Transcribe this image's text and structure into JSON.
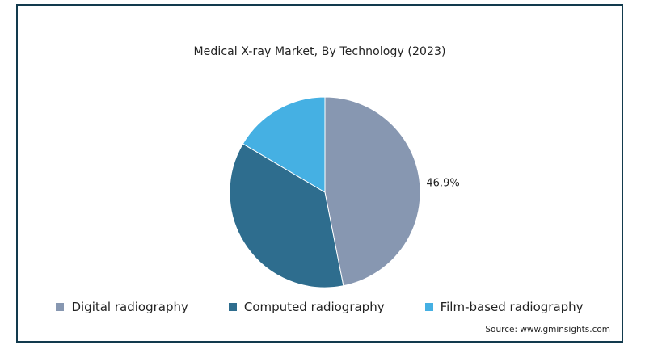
{
  "chart_data": {
    "type": "pie",
    "title": "Medical X-ray Market, By Technology (2023)",
    "slices": [
      {
        "name": "Digital radiography",
        "value": 46.9,
        "color": "#8797b1",
        "label": "46.9%"
      },
      {
        "name": "Computed radiography",
        "value": 36.6,
        "color": "#2e6d8e",
        "label": ""
      },
      {
        "name": "Film-based radiography",
        "value": 16.5,
        "color": "#45b0e3",
        "label": ""
      }
    ],
    "legend_position": "bottom",
    "source": "Source: www.gminsights.com"
  }
}
